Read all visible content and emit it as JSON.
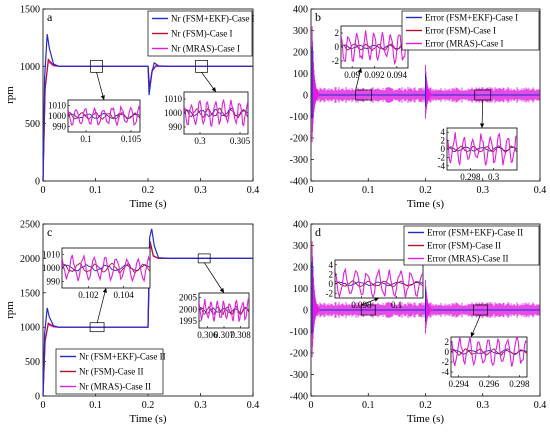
{
  "chart_data": [
    {
      "id": "a",
      "type": "line",
      "panel_label": "a",
      "xlabel": "Time (s)",
      "ylabel": "rpm",
      "xlim": [
        0,
        0.4
      ],
      "ylim": [
        0,
        1500
      ],
      "xticks": [
        0,
        0.1,
        0.2,
        0.3,
        0.4
      ],
      "yticks": [
        0,
        500,
        1000,
        1500
      ],
      "xtick_labels": [
        "0",
        "0.1",
        "0.2",
        "0.3",
        "0.4"
      ],
      "ytick_labels": [
        "0",
        "500",
        "1000",
        "1500"
      ],
      "legend": {
        "position": "top-right"
      },
      "series": [
        {
          "name": "Nr (FSM+EKF)-Case I",
          "color": "#1f2bd1",
          "x": [
            0,
            0.003,
            0.008,
            0.012,
            0.02,
            0.03,
            0.05,
            0.2,
            0.202,
            0.207,
            0.212,
            0.22,
            0.24,
            0.4
          ],
          "y": [
            0,
            900,
            1280,
            1160,
            1020,
            1000,
            1000,
            1000,
            750,
            940,
            1030,
            1005,
            1000,
            1000
          ]
        },
        {
          "name": "Nr (FSM)-Case I",
          "color": "#b3122b",
          "x": [
            0,
            0.004,
            0.01,
            0.02,
            0.03,
            0.05,
            0.2,
            0.203,
            0.208,
            0.215,
            0.23,
            0.4
          ],
          "y": [
            0,
            800,
            1060,
            1010,
            1000,
            1000,
            1000,
            800,
            960,
            1005,
            1000,
            1000
          ]
        },
        {
          "name": "Nr  (MRAS)-Case I",
          "color": "#e01ee0",
          "x": [
            0,
            0.004,
            0.01,
            0.02,
            0.03,
            0.05,
            0.2,
            0.203,
            0.208,
            0.215,
            0.23,
            0.4
          ],
          "y": [
            0,
            820,
            1040,
            1005,
            1000,
            1000,
            1000,
            820,
            970,
            1000,
            1000,
            1000
          ]
        }
      ],
      "insets": [
        {
          "xlim": [
            0.098,
            0.106
          ],
          "ylim": [
            985,
            1015
          ],
          "xticks": [
            0.1,
            0.105
          ],
          "yticks": [
            990,
            1000,
            1010
          ],
          "xtick_labels": [
            "0.1",
            "0.105"
          ],
          "ytick_labels": [
            "990",
            "1000",
            "1010"
          ]
        },
        {
          "xlim": [
            0.298,
            0.306
          ],
          "ylim": [
            985,
            1015
          ],
          "xticks": [
            0.3,
            0.305
          ],
          "yticks": [
            990,
            1000,
            1010
          ],
          "xtick_labels": [
            "0.3",
            "0.305"
          ],
          "ytick_labels": [
            "990",
            "1000",
            "1010"
          ]
        }
      ]
    },
    {
      "id": "b",
      "type": "line",
      "panel_label": "b",
      "xlabel": "Time (s)",
      "ylabel": "",
      "xlim": [
        0,
        0.4
      ],
      "ylim": [
        -400,
        400
      ],
      "xticks": [
        0,
        0.1,
        0.2,
        0.3,
        0.4
      ],
      "yticks": [
        -400,
        -300,
        -200,
        -100,
        0,
        100,
        200,
        300,
        400
      ],
      "xtick_labels": [
        "0",
        "0.1",
        "0.2",
        "0.3",
        "0.4"
      ],
      "ytick_labels": [
        "-400",
        "-300",
        "-200",
        "-100",
        "0",
        "100",
        "200",
        "300",
        "400"
      ],
      "legend": {
        "position": "top-right"
      },
      "series": [
        {
          "name": "Error (FSM+EKF)-Case I",
          "color": "#1f2bd1"
        },
        {
          "name": "Error (FSM)-Case I",
          "color": "#b3122b"
        },
        {
          "name": "Error  (MRAS)-Case I",
          "color": "#e01ee0"
        }
      ],
      "insets": [
        {
          "xlim": [
            0.089,
            0.095
          ],
          "ylim": [
            -3,
            3
          ],
          "xticks": [
            0.09,
            0.092,
            0.094
          ],
          "yticks": [
            -2,
            0,
            2
          ],
          "xtick_labels": [
            "0.09",
            "0.092",
            "0.094"
          ],
          "ytick_labels": [
            "-2",
            "0",
            "2"
          ]
        },
        {
          "xlim": [
            0.296,
            0.302
          ],
          "ylim": [
            -5,
            5
          ],
          "xticks": [
            0.298,
            0.3
          ],
          "yticks": [
            -4,
            -2,
            0,
            2,
            4
          ],
          "xtick_labels": [
            "0.298",
            "0.3"
          ],
          "ytick_labels": [
            "-4",
            "-2",
            "0",
            "2",
            "4"
          ]
        }
      ]
    },
    {
      "id": "c",
      "type": "line",
      "panel_label": "c",
      "xlabel": "Time (s)",
      "ylabel": "rpm",
      "xlim": [
        0,
        0.4
      ],
      "ylim": [
        0,
        2500
      ],
      "xticks": [
        0,
        0.1,
        0.2,
        0.3,
        0.4
      ],
      "yticks": [
        0,
        500,
        1000,
        1500,
        2000,
        2500
      ],
      "xtick_labels": [
        "0",
        "0.1",
        "0.2",
        "0.3",
        "0.4"
      ],
      "ytick_labels": [
        "0",
        "500",
        "1000",
        "1500",
        "2000",
        "2500"
      ],
      "legend": {
        "position": "bottom-right"
      },
      "series": [
        {
          "name": "Nr (FSM+EKF)-Case II",
          "color": "#1f2bd1",
          "x": [
            0,
            0.003,
            0.008,
            0.012,
            0.02,
            0.03,
            0.05,
            0.2,
            0.203,
            0.207,
            0.212,
            0.22,
            0.24,
            0.4
          ],
          "y": [
            0,
            900,
            1280,
            1150,
            1020,
            1000,
            1000,
            1000,
            2300,
            2430,
            2180,
            2010,
            2000,
            2000
          ]
        },
        {
          "name": "Nr (FSM)-Case II",
          "color": "#b3122b",
          "x": [
            0,
            0.004,
            0.01,
            0.02,
            0.03,
            0.05,
            0.2,
            0.204,
            0.21,
            0.22,
            0.4
          ],
          "y": [
            0,
            800,
            1060,
            1010,
            1000,
            1000,
            1000,
            2250,
            2040,
            2000,
            2000
          ]
        },
        {
          "name": "Nr  (MRAS)-Case II",
          "color": "#e01ee0",
          "x": [
            0,
            0.004,
            0.01,
            0.02,
            0.03,
            0.05,
            0.2,
            0.204,
            0.21,
            0.22,
            0.4
          ],
          "y": [
            0,
            820,
            1040,
            1005,
            1000,
            1000,
            1000,
            2230,
            2030,
            2000,
            2000
          ]
        }
      ],
      "insets": [
        {
          "xlim": [
            0.1005,
            0.1055
          ],
          "ylim": [
            985,
            1015
          ],
          "xticks": [
            0.102,
            0.104
          ],
          "yticks": [
            990,
            1000,
            1010
          ],
          "xtick_labels": [
            "0.102",
            "0.104"
          ],
          "ytick_labels": [
            "990",
            "1000",
            "1010"
          ]
        },
        {
          "xlim": [
            0.3055,
            0.3085
          ],
          "ylim": [
            1992,
            2007
          ],
          "xticks": [
            0.306,
            0.307,
            0.308
          ],
          "yticks": [
            1995,
            2000,
            2005
          ],
          "xtick_labels": [
            "0.306",
            "0.307",
            "0.308"
          ],
          "ytick_labels": [
            "1995",
            "2000",
            "2005"
          ]
        }
      ]
    },
    {
      "id": "d",
      "type": "line",
      "panel_label": "d",
      "xlabel": "Time (s)",
      "ylabel": "",
      "xlim": [
        0,
        0.4
      ],
      "ylim": [
        -400,
        400
      ],
      "xticks": [
        0,
        0.1,
        0.2,
        0.3,
        0.4
      ],
      "yticks": [
        -400,
        -300,
        -200,
        -100,
        0,
        100,
        200,
        300,
        400
      ],
      "xtick_labels": [
        "0",
        "0.1",
        "0.2",
        "0.3",
        "0.4"
      ],
      "ytick_labels": [
        "-400",
        "-300",
        "-200",
        "-100",
        "0",
        "100",
        "200",
        "300",
        "400"
      ],
      "legend": {
        "position": "top-right"
      },
      "series": [
        {
          "name": "Error (FSM+EKF)-Case II",
          "color": "#1f2bd1"
        },
        {
          "name": "Error (FSM)-Case II",
          "color": "#b3122b"
        },
        {
          "name": "Error  (MRAS)-Case II",
          "color": "#e01ee0"
        }
      ],
      "insets": [
        {
          "xlim": [
            0.0965,
            0.1015
          ],
          "ylim": [
            -3,
            5
          ],
          "xticks": [
            0.098,
            0.1
          ],
          "yticks": [
            -2,
            0,
            2,
            4
          ],
          "xtick_labels": [
            "0.098",
            "0.1"
          ],
          "ytick_labels": [
            "-2",
            "0",
            "2",
            "4"
          ]
        },
        {
          "xlim": [
            0.2935,
            0.2985
          ],
          "ylim": [
            -5,
            3
          ],
          "xticks": [
            0.294,
            0.296,
            0.298
          ],
          "yticks": [
            -4,
            -2,
            0,
            2
          ],
          "xtick_labels": [
            "0.294",
            "0.296",
            "0.298"
          ],
          "ytick_labels": [
            "-4",
            "-2",
            "0",
            "2"
          ]
        }
      ]
    }
  ]
}
